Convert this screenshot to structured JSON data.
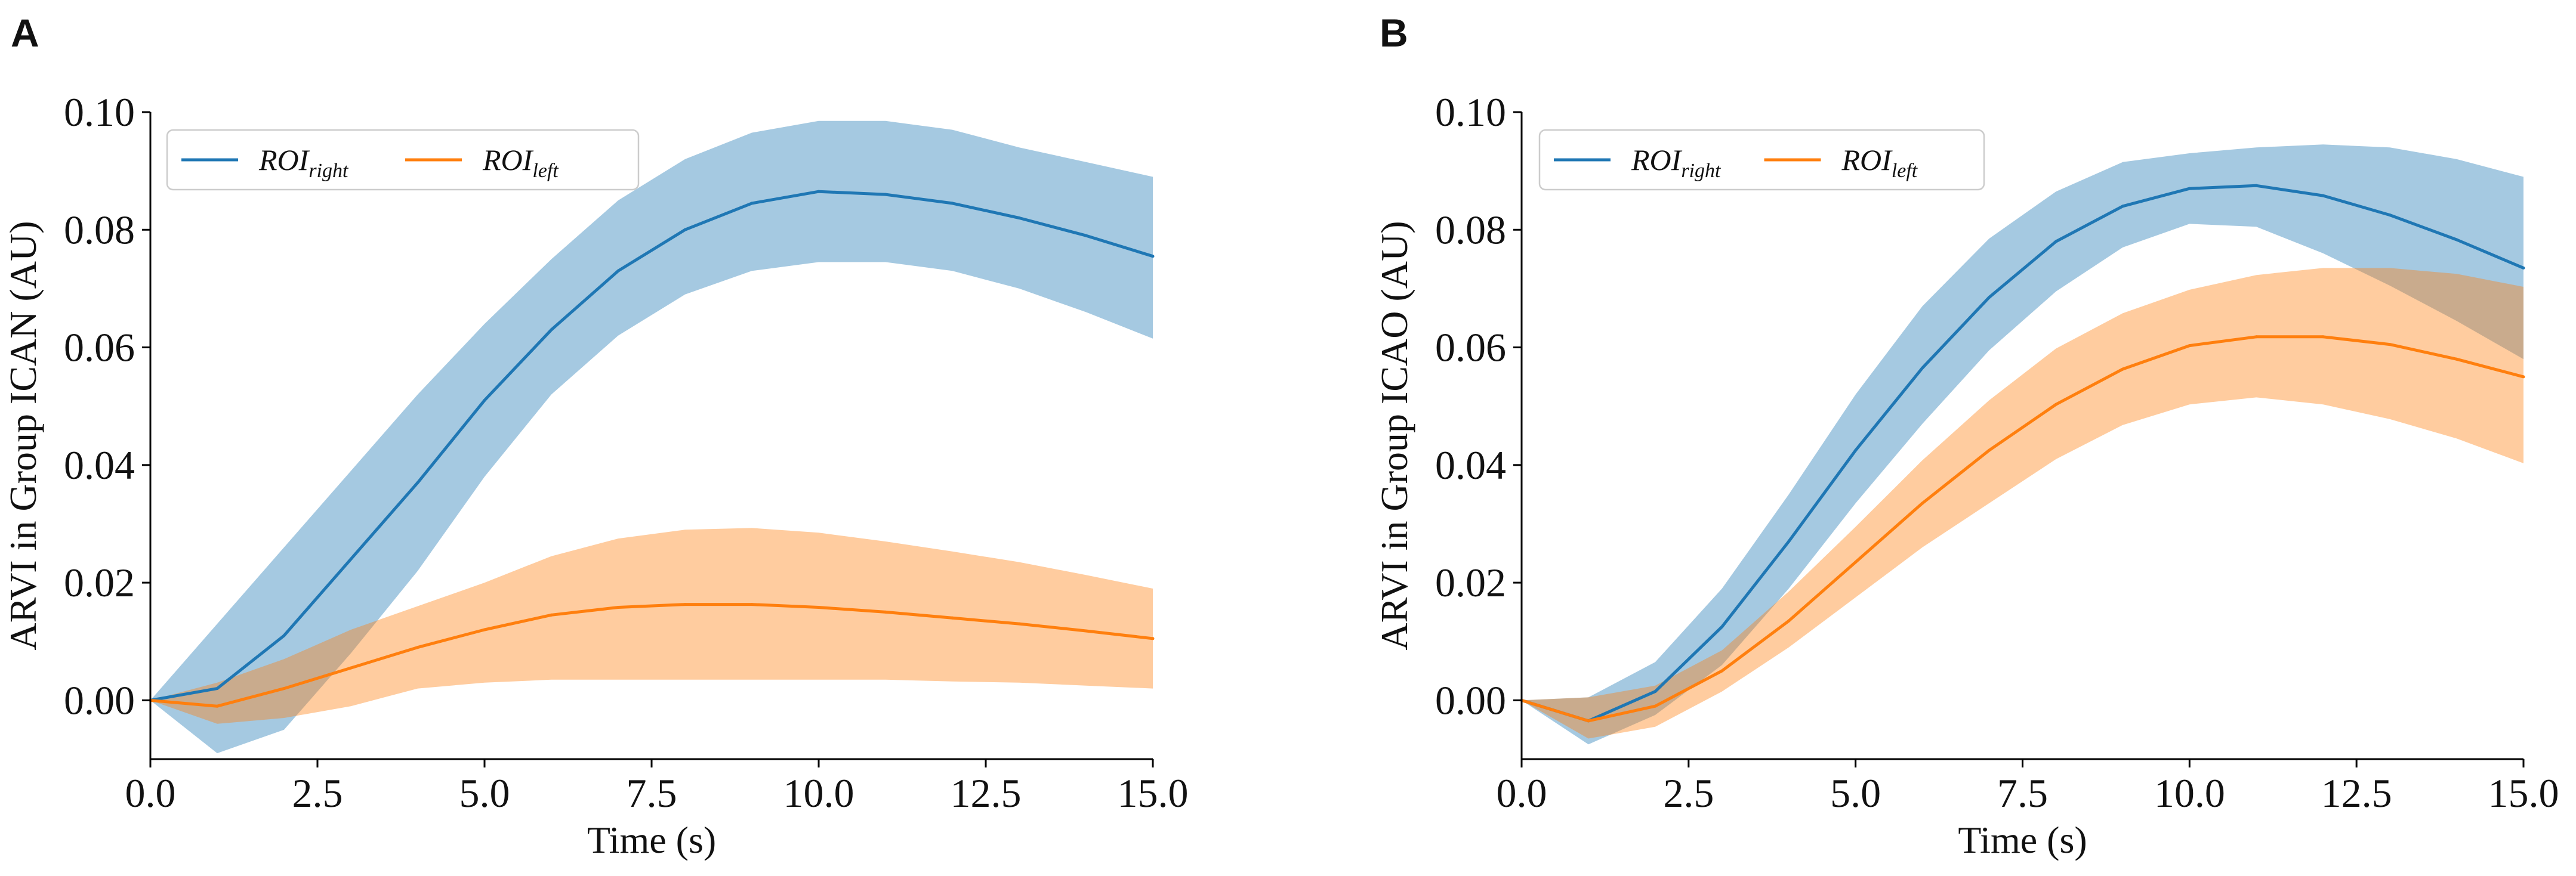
{
  "figure": {
    "panels": [
      "A",
      "B"
    ]
  },
  "colors": {
    "right": "#1f77b4",
    "left": "#ff7f0e",
    "right_band": "#1f77b4",
    "left_band": "#ff7f0e"
  },
  "chart_data": [
    {
      "type": "line",
      "panel_label": "A",
      "title": "",
      "xlabel": "Time (s)",
      "ylabel": "ARVI in Group ICAN (AU)",
      "xlim": [
        0,
        15
      ],
      "ylim": [
        -0.01,
        0.1
      ],
      "xticks": [
        0,
        2.5,
        5,
        7.5,
        10,
        12.5,
        15
      ],
      "xtick_labels": [
        "0.0",
        "2.5",
        "5.0",
        "7.5",
        "10.0",
        "12.5",
        "15.0"
      ],
      "yticks": [
        0,
        0.02,
        0.04,
        0.06,
        0.08,
        0.1
      ],
      "ytick_labels": [
        "0.00",
        "0.02",
        "0.04",
        "0.06",
        "0.08",
        "0.10"
      ],
      "grid": false,
      "legend_position": "top-left",
      "x": [
        0,
        1,
        2,
        3,
        4,
        5,
        6,
        7,
        8,
        9,
        10,
        11,
        12,
        13,
        14,
        15
      ],
      "series": [
        {
          "name": "ROI_right",
          "legend_main": "ROI",
          "legend_sub": "right",
          "color_key": "right",
          "values": [
            0.0,
            0.002,
            0.011,
            0.024,
            0.037,
            0.051,
            0.063,
            0.073,
            0.08,
            0.0845,
            0.0865,
            0.086,
            0.0845,
            0.082,
            0.079,
            0.0755
          ],
          "lower": [
            0.0,
            -0.009,
            -0.005,
            0.008,
            0.022,
            0.038,
            0.052,
            0.062,
            0.069,
            0.073,
            0.0745,
            0.0745,
            0.073,
            0.07,
            0.066,
            0.0615
          ],
          "upper": [
            0.0,
            0.013,
            0.026,
            0.039,
            0.052,
            0.064,
            0.075,
            0.085,
            0.092,
            0.0965,
            0.0985,
            0.0985,
            0.097,
            0.094,
            0.0915,
            0.089
          ]
        },
        {
          "name": "ROI_left",
          "legend_main": "ROI",
          "legend_sub": "left",
          "color_key": "left",
          "values": [
            0.0,
            -0.001,
            0.002,
            0.0055,
            0.009,
            0.012,
            0.0145,
            0.0158,
            0.0163,
            0.0163,
            0.0158,
            0.015,
            0.014,
            0.013,
            0.0118,
            0.0105
          ],
          "lower": [
            0.0,
            -0.004,
            -0.003,
            -0.001,
            0.002,
            0.003,
            0.0035,
            0.0035,
            0.0035,
            0.0035,
            0.0035,
            0.0035,
            0.0032,
            0.003,
            0.0025,
            0.002
          ],
          "upper": [
            0.0,
            0.003,
            0.007,
            0.012,
            0.016,
            0.02,
            0.0245,
            0.0275,
            0.029,
            0.0293,
            0.0285,
            0.027,
            0.0253,
            0.0235,
            0.0213,
            0.019
          ]
        }
      ]
    },
    {
      "type": "line",
      "panel_label": "B",
      "title": "",
      "xlabel": "Time (s)",
      "ylabel": "ARVI in Group ICAO (AU)",
      "xlim": [
        0,
        15
      ],
      "ylim": [
        -0.01,
        0.1
      ],
      "xticks": [
        0,
        2.5,
        5,
        7.5,
        10,
        12.5,
        15
      ],
      "xtick_labels": [
        "0.0",
        "2.5",
        "5.0",
        "7.5",
        "10.0",
        "12.5",
        "15.0"
      ],
      "yticks": [
        0,
        0.02,
        0.04,
        0.06,
        0.08,
        0.1
      ],
      "ytick_labels": [
        "0.00",
        "0.02",
        "0.04",
        "0.06",
        "0.08",
        "0.10"
      ],
      "grid": false,
      "legend_position": "top-left",
      "x": [
        0,
        1,
        2,
        3,
        4,
        5,
        6,
        7,
        8,
        9,
        10,
        11,
        12,
        13,
        14,
        15
      ],
      "series": [
        {
          "name": "ROI_right",
          "legend_main": "ROI",
          "legend_sub": "right",
          "color_key": "right",
          "values": [
            0.0,
            -0.0035,
            0.0015,
            0.0125,
            0.027,
            0.0425,
            0.0565,
            0.0685,
            0.078,
            0.084,
            0.087,
            0.0875,
            0.0858,
            0.0825,
            0.0783,
            0.0735
          ],
          "lower": [
            0.0,
            -0.0075,
            -0.0025,
            0.006,
            0.019,
            0.0335,
            0.047,
            0.0595,
            0.0695,
            0.077,
            0.081,
            0.0805,
            0.076,
            0.0705,
            0.0645,
            0.058
          ],
          "upper": [
            0.0,
            0.0005,
            0.0065,
            0.019,
            0.035,
            0.052,
            0.067,
            0.0785,
            0.0865,
            0.0915,
            0.093,
            0.094,
            0.0945,
            0.094,
            0.092,
            0.089
          ]
        },
        {
          "name": "ROI_left",
          "legend_main": "ROI",
          "legend_sub": "left",
          "color_key": "left",
          "values": [
            0.0,
            -0.0035,
            -0.001,
            0.005,
            0.0135,
            0.0235,
            0.0335,
            0.0425,
            0.0503,
            0.0563,
            0.0603,
            0.0618,
            0.0618,
            0.0605,
            0.058,
            0.055
          ],
          "lower": [
            0.0,
            -0.0065,
            -0.0045,
            0.0015,
            0.009,
            0.0175,
            0.026,
            0.0335,
            0.041,
            0.0468,
            0.0503,
            0.0515,
            0.0503,
            0.0478,
            0.0445,
            0.0403
          ],
          "upper": [
            0.0,
            0.0005,
            0.0025,
            0.0085,
            0.0185,
            0.0295,
            0.0408,
            0.051,
            0.0598,
            0.0658,
            0.0698,
            0.0723,
            0.0735,
            0.0735,
            0.0725,
            0.0703
          ]
        }
      ]
    }
  ]
}
